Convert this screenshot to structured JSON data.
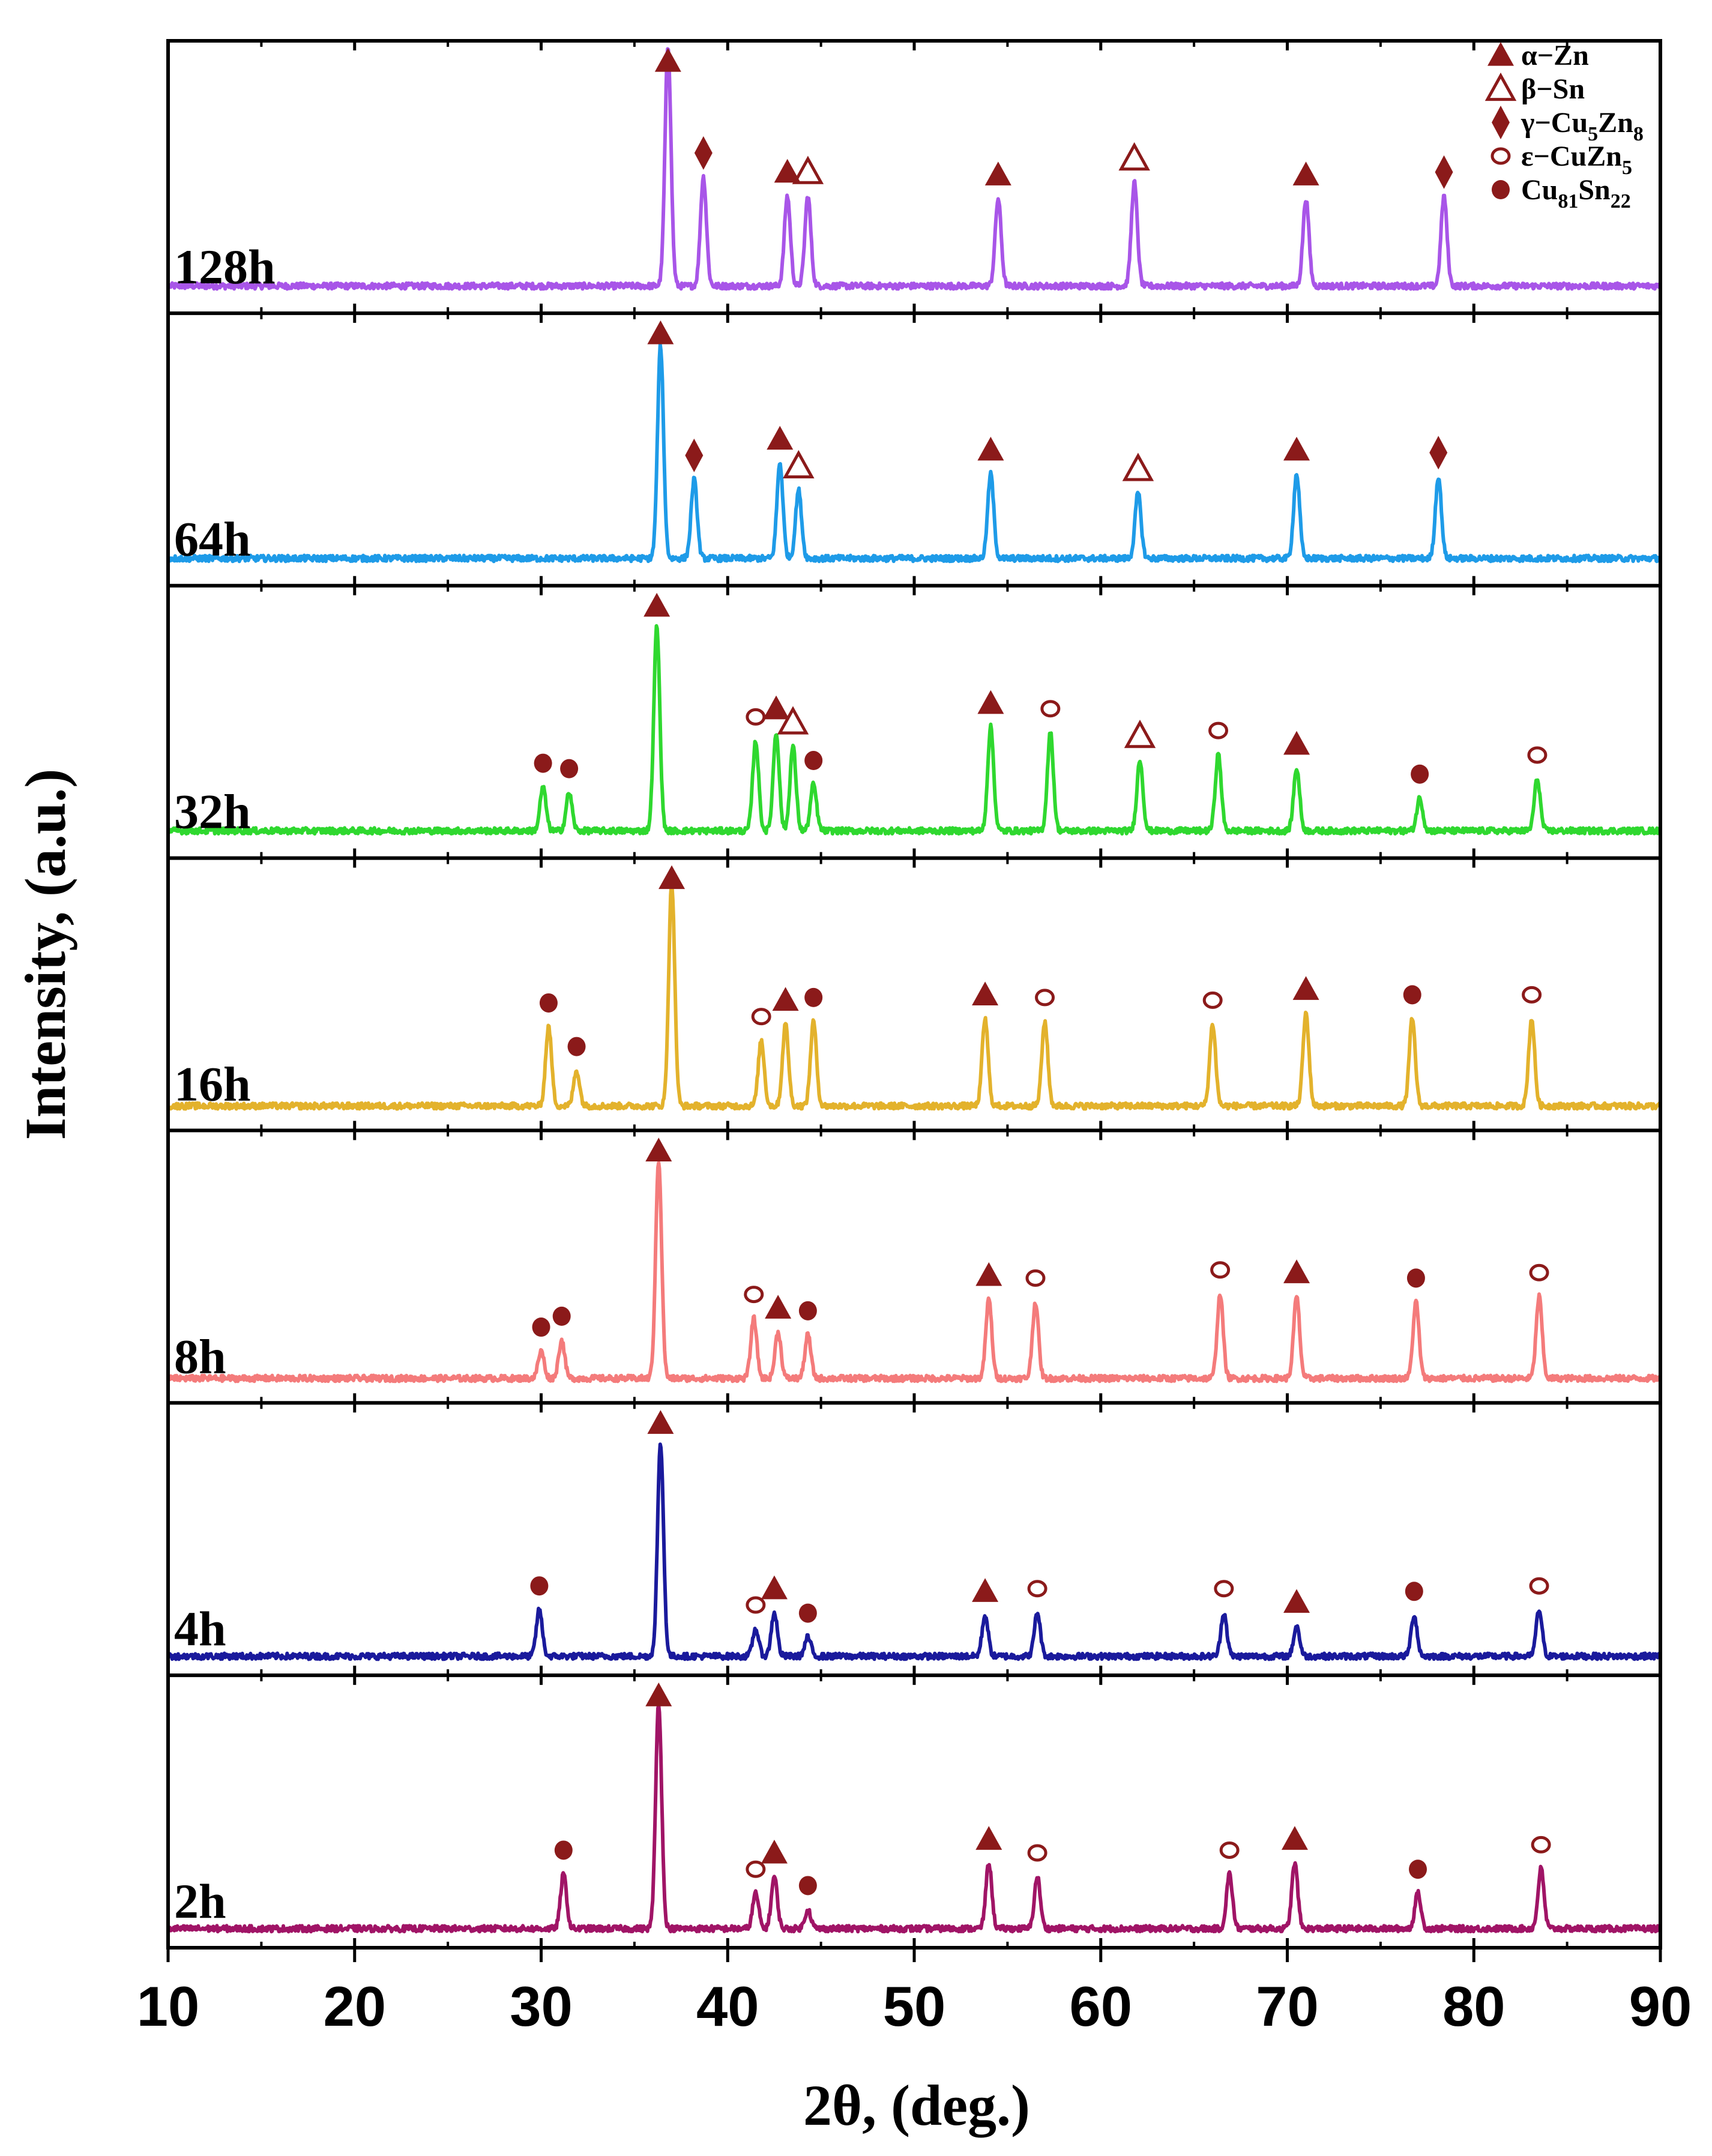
{
  "chart_data": {
    "type": "line",
    "title": "",
    "xlabel": "2θ, (deg.)",
    "ylabel": "Intensity, (a.u.)",
    "xlim": [
      10,
      90
    ],
    "x_ticks": [
      10,
      20,
      30,
      40,
      50,
      60,
      70,
      80,
      90
    ],
    "x_tick_labels": [
      "10",
      "20",
      "30",
      "40",
      "50",
      "60",
      "70",
      "80",
      "90"
    ],
    "grid": false,
    "legend_position": "top-right",
    "colors": {
      "marker": "#8B1A1A",
      "axis": "#000000"
    },
    "phases": [
      {
        "key": "alpha_Zn",
        "symbol": "filled-triangle",
        "label": "α−Zn"
      },
      {
        "key": "beta_Sn",
        "symbol": "open-triangle",
        "label": "β−Sn"
      },
      {
        "key": "gamma",
        "symbol": "diamond",
        "label_main": "γ−Cu",
        "sub1": "5",
        "mid": "Zn",
        "sub2": "8"
      },
      {
        "key": "eps",
        "symbol": "open-circle",
        "label_main": "ε−CuZn",
        "sub1": "5"
      },
      {
        "key": "cusn",
        "symbol": "filled-circle",
        "label_main": "Cu",
        "sub1": "81",
        "mid": "Sn",
        "sub2": "22"
      }
    ],
    "series": [
      {
        "name": "128h",
        "color": "#A855E8",
        "baseline": 0.1,
        "peaks": [
          {
            "x": 36.8,
            "h": 0.88,
            "phase": "alpha_Zn"
          },
          {
            "x": 38.7,
            "h": 0.4,
            "phase": "gamma"
          },
          {
            "x": 43.2,
            "h": 0.33,
            "phase": "alpha_Zn"
          },
          {
            "x": 44.3,
            "h": 0.33,
            "phase": "beta_Sn"
          },
          {
            "x": 54.5,
            "h": 0.32,
            "phase": "alpha_Zn"
          },
          {
            "x": 61.8,
            "h": 0.38,
            "phase": "beta_Sn"
          },
          {
            "x": 71.0,
            "h": 0.32,
            "phase": "alpha_Zn"
          },
          {
            "x": 78.4,
            "h": 0.33,
            "phase": "gamma"
          }
        ]
      },
      {
        "name": "64h",
        "color": "#1E9BE8",
        "baseline": 0.1,
        "peaks": [
          {
            "x": 36.4,
            "h": 0.78,
            "phase": "alpha_Zn"
          },
          {
            "x": 38.2,
            "h": 0.29,
            "phase": "gamma"
          },
          {
            "x": 42.8,
            "h": 0.35,
            "phase": "alpha_Zn"
          },
          {
            "x": 43.8,
            "h": 0.25,
            "phase": "beta_Sn"
          },
          {
            "x": 54.1,
            "h": 0.31,
            "phase": "alpha_Zn"
          },
          {
            "x": 62.0,
            "h": 0.24,
            "phase": "beta_Sn"
          },
          {
            "x": 70.5,
            "h": 0.31,
            "phase": "alpha_Zn"
          },
          {
            "x": 78.1,
            "h": 0.3,
            "phase": "gamma"
          }
        ]
      },
      {
        "name": "32h",
        "color": "#2FD82F",
        "baseline": 0.1,
        "peaks": [
          {
            "x": 30.1,
            "h": 0.16,
            "phase": "cusn"
          },
          {
            "x": 31.5,
            "h": 0.14,
            "phase": "cusn"
          },
          {
            "x": 36.2,
            "h": 0.75,
            "phase": "alpha_Zn"
          },
          {
            "x": 41.5,
            "h": 0.33,
            "phase": "eps"
          },
          {
            "x": 42.6,
            "h": 0.36,
            "phase": "alpha_Zn"
          },
          {
            "x": 43.5,
            "h": 0.31,
            "phase": "beta_Sn"
          },
          {
            "x": 44.6,
            "h": 0.17,
            "phase": "cusn"
          },
          {
            "x": 54.1,
            "h": 0.38,
            "phase": "alpha_Zn"
          },
          {
            "x": 57.3,
            "h": 0.36,
            "phase": "eps"
          },
          {
            "x": 62.1,
            "h": 0.26,
            "phase": "beta_Sn"
          },
          {
            "x": 66.3,
            "h": 0.28,
            "phase": "eps"
          },
          {
            "x": 70.5,
            "h": 0.23,
            "phase": "alpha_Zn"
          },
          {
            "x": 77.1,
            "h": 0.12,
            "phase": "cusn"
          },
          {
            "x": 83.4,
            "h": 0.19,
            "phase": "eps"
          }
        ]
      },
      {
        "name": "16h",
        "color": "#E3B22C",
        "baseline": 0.09,
        "peaks": [
          {
            "x": 30.4,
            "h": 0.29,
            "phase": "cusn"
          },
          {
            "x": 31.9,
            "h": 0.13,
            "phase": "cusn"
          },
          {
            "x": 37.0,
            "h": 0.82,
            "phase": "alpha_Zn"
          },
          {
            "x": 41.8,
            "h": 0.24,
            "phase": "eps"
          },
          {
            "x": 43.1,
            "h": 0.3,
            "phase": "alpha_Zn"
          },
          {
            "x": 44.6,
            "h": 0.31,
            "phase": "cusn"
          },
          {
            "x": 53.8,
            "h": 0.32,
            "phase": "alpha_Zn"
          },
          {
            "x": 57.0,
            "h": 0.31,
            "phase": "eps"
          },
          {
            "x": 66.0,
            "h": 0.3,
            "phase": "eps"
          },
          {
            "x": 71.0,
            "h": 0.34,
            "phase": "alpha_Zn"
          },
          {
            "x": 76.7,
            "h": 0.32,
            "phase": "cusn"
          },
          {
            "x": 83.1,
            "h": 0.32,
            "phase": "eps"
          }
        ]
      },
      {
        "name": "8h",
        "color": "#F47B7B",
        "baseline": 0.09,
        "peaks": [
          {
            "x": 30.0,
            "h": 0.1,
            "phase": "cusn"
          },
          {
            "x": 31.1,
            "h": 0.14,
            "phase": "cusn"
          },
          {
            "x": 36.3,
            "h": 0.8,
            "phase": "alpha_Zn"
          },
          {
            "x": 41.4,
            "h": 0.22,
            "phase": "eps"
          },
          {
            "x": 42.7,
            "h": 0.17,
            "phase": "alpha_Zn"
          },
          {
            "x": 44.3,
            "h": 0.16,
            "phase": "cusn"
          },
          {
            "x": 54.0,
            "h": 0.29,
            "phase": "alpha_Zn"
          },
          {
            "x": 56.5,
            "h": 0.28,
            "phase": "eps"
          },
          {
            "x": 66.4,
            "h": 0.31,
            "phase": "eps"
          },
          {
            "x": 70.5,
            "h": 0.3,
            "phase": "alpha_Zn"
          },
          {
            "x": 76.9,
            "h": 0.28,
            "phase": "cusn"
          },
          {
            "x": 83.5,
            "h": 0.3,
            "phase": "eps"
          }
        ]
      },
      {
        "name": "4h",
        "color": "#1A1A9C",
        "baseline": 0.07,
        "peaks": [
          {
            "x": 29.9,
            "h": 0.17,
            "phase": "cusn"
          },
          {
            "x": 36.4,
            "h": 0.78,
            "phase": "alpha_Zn"
          },
          {
            "x": 41.5,
            "h": 0.1,
            "phase": "eps"
          },
          {
            "x": 42.5,
            "h": 0.16,
            "phase": "alpha_Zn"
          },
          {
            "x": 44.3,
            "h": 0.07,
            "phase": "cusn"
          },
          {
            "x": 53.8,
            "h": 0.15,
            "phase": "alpha_Zn"
          },
          {
            "x": 56.6,
            "h": 0.16,
            "phase": "eps"
          },
          {
            "x": 66.6,
            "h": 0.16,
            "phase": "eps"
          },
          {
            "x": 70.5,
            "h": 0.11,
            "phase": "alpha_Zn"
          },
          {
            "x": 76.8,
            "h": 0.15,
            "phase": "cusn"
          },
          {
            "x": 83.5,
            "h": 0.17,
            "phase": "eps"
          }
        ]
      },
      {
        "name": "2h",
        "color": "#A01466",
        "baseline": 0.07,
        "peaks": [
          {
            "x": 31.2,
            "h": 0.2,
            "phase": "cusn"
          },
          {
            "x": 36.3,
            "h": 0.83,
            "phase": "alpha_Zn"
          },
          {
            "x": 41.5,
            "h": 0.13,
            "phase": "eps"
          },
          {
            "x": 42.5,
            "h": 0.19,
            "phase": "alpha_Zn"
          },
          {
            "x": 44.3,
            "h": 0.07,
            "phase": "cusn"
          },
          {
            "x": 54.0,
            "h": 0.24,
            "phase": "alpha_Zn"
          },
          {
            "x": 56.6,
            "h": 0.19,
            "phase": "eps"
          },
          {
            "x": 66.9,
            "h": 0.2,
            "phase": "eps"
          },
          {
            "x": 70.4,
            "h": 0.24,
            "phase": "alpha_Zn"
          },
          {
            "x": 77.0,
            "h": 0.13,
            "phase": "cusn"
          },
          {
            "x": 83.6,
            "h": 0.22,
            "phase": "eps"
          }
        ]
      }
    ]
  }
}
